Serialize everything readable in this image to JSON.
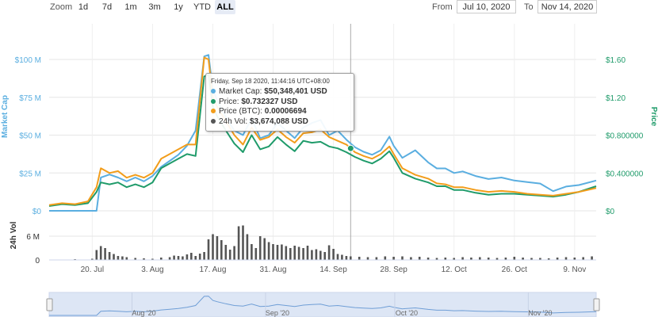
{
  "toolbar": {
    "zoom_label": "Zoom",
    "zoom_buttons": [
      "1d",
      "7d",
      "1m",
      "3m",
      "1y",
      "YTD",
      "ALL"
    ],
    "active_zoom": "ALL",
    "from_label": "From",
    "from_value": "Jul 10, 2020",
    "to_label": "To",
    "to_value": "Nov 14, 2020"
  },
  "tooltip": {
    "date": "Friday, Sep 18 2020, 11:44:16 UTC+08:00",
    "rows": [
      {
        "label": "Market Cap:",
        "value": "$50,348,401 USD",
        "color": "#5aaee0"
      },
      {
        "label": "Price:",
        "value": "$0.732327 USD",
        "color": "#1f9b6a"
      },
      {
        "label": "Price (BTC):",
        "value": "0.00006694",
        "color": "#f29d1b"
      },
      {
        "label": "24h Vol:",
        "value": "$3,674,088 USD",
        "color": "#555555"
      }
    ]
  },
  "colors": {
    "market_cap": "#5aaee0",
    "price": "#1f9b6a",
    "price_btc": "#f29d1b",
    "volume": "#555555",
    "navigator_fill": "#dde6f5",
    "navigator_line": "#6f9ed6"
  },
  "chart_data": {
    "type": "line",
    "left_axis": {
      "label": "Market Cap",
      "ticks": [
        "$0",
        "$25 M",
        "$50 M",
        "$75 M",
        "$100 M"
      ],
      "range": [
        0,
        100000000
      ],
      "color": "#5aaee0"
    },
    "right_axis": {
      "label": "Price",
      "ticks": [
        "$0",
        "$0.400000",
        "$0.800000",
        "$1.20",
        "$1.60"
      ],
      "range": [
        0,
        1.6
      ],
      "color": "#1f9b6a"
    },
    "volume_axis": {
      "label": "24h Vol",
      "ticks": [
        "0",
        "6 M"
      ],
      "range": [
        0,
        12000000
      ]
    },
    "x_tick_labels": [
      "20. Jul",
      "3. Aug",
      "17. Aug",
      "31. Aug",
      "14. Sep",
      "28. Sep",
      "12. Oct",
      "26. Oct",
      "9. Nov"
    ],
    "x_tick_days": [
      10,
      24,
      38,
      52,
      66,
      80,
      94,
      108,
      122
    ],
    "x_range_days": [
      0,
      127
    ],
    "x_day0": "Jul 10, 2020",
    "navigator_labels": [
      "Aug '20",
      "Sep '20",
      "Oct '20",
      "Nov '20"
    ],
    "navigator_label_days": [
      22,
      53,
      83,
      114
    ],
    "grid": true,
    "series": [
      {
        "name": "Market Cap",
        "axis": "left",
        "days": [
          0,
          3,
          6,
          9,
          11,
          12,
          14,
          16,
          18,
          20,
          22,
          24,
          26,
          28,
          30,
          32,
          34,
          36,
          37,
          38,
          39,
          41,
          43,
          45,
          47,
          49,
          51,
          53,
          55,
          57,
          59,
          61,
          63,
          65,
          67,
          69,
          71,
          73,
          75,
          77,
          79,
          80,
          82,
          85,
          88,
          90,
          92,
          94,
          96,
          99,
          102,
          105,
          108,
          111,
          114,
          117,
          120,
          123,
          127
        ],
        "values": [
          0,
          0,
          0,
          0,
          0,
          22000000,
          24000000,
          22000000,
          19500000,
          22000000,
          19500000,
          23000000,
          29000000,
          33000000,
          37000000,
          43000000,
          53000000,
          102000000,
          103000000,
          80000000,
          73000000,
          62000000,
          53000000,
          50000000,
          61000000,
          48000000,
          50000000,
          58000000,
          53000000,
          48000000,
          55000000,
          58000000,
          60000000,
          50000000,
          53000000,
          47000000,
          42000000,
          39000000,
          37000000,
          40000000,
          49000000,
          43000000,
          35000000,
          40000000,
          32000000,
          28000000,
          28000000,
          25000000,
          26000000,
          23000000,
          21000000,
          22000000,
          20000000,
          19000000,
          18000000,
          13000000,
          16000000,
          17000000,
          20000000
        ]
      },
      {
        "name": "Price",
        "axis": "right",
        "days": [
          0,
          3,
          6,
          9,
          11,
          12,
          14,
          16,
          18,
          20,
          22,
          24,
          26,
          28,
          30,
          32,
          34,
          36,
          37,
          38,
          39,
          41,
          43,
          45,
          47,
          49,
          51,
          53,
          55,
          57,
          59,
          61,
          63,
          65,
          67,
          69,
          71,
          73,
          75,
          77,
          79,
          80,
          82,
          85,
          88,
          90,
          92,
          94,
          96,
          99,
          102,
          105,
          108,
          111,
          114,
          117,
          120,
          123,
          127
        ],
        "values": [
          0.05,
          0.07,
          0.06,
          0.08,
          0.2,
          0.3,
          0.28,
          0.3,
          0.25,
          0.28,
          0.25,
          0.3,
          0.45,
          0.5,
          0.55,
          0.6,
          0.58,
          1.42,
          1.44,
          1.1,
          1.0,
          0.85,
          0.71,
          0.62,
          0.8,
          0.65,
          0.68,
          0.78,
          0.7,
          0.63,
          0.74,
          0.72,
          0.73,
          0.68,
          0.66,
          0.62,
          0.57,
          0.53,
          0.5,
          0.55,
          0.63,
          0.56,
          0.4,
          0.34,
          0.3,
          0.26,
          0.26,
          0.22,
          0.22,
          0.19,
          0.17,
          0.18,
          0.18,
          0.17,
          0.16,
          0.15,
          0.17,
          0.2,
          0.26
        ]
      },
      {
        "name": "Price (BTC)",
        "axis": "right",
        "days": [
          0,
          3,
          6,
          9,
          11,
          12,
          14,
          16,
          18,
          20,
          22,
          24,
          26,
          28,
          30,
          32,
          34,
          36,
          37,
          38,
          39,
          41,
          43,
          45,
          47,
          49,
          51,
          53,
          55,
          57,
          59,
          61,
          63,
          65,
          67,
          69,
          71,
          73,
          75,
          77,
          79,
          80,
          82,
          85,
          88,
          90,
          92,
          94,
          96,
          99,
          102,
          105,
          108,
          111,
          114,
          117,
          120,
          123,
          127
        ],
        "values": [
          0.06,
          0.08,
          0.07,
          0.1,
          0.25,
          0.45,
          0.4,
          0.42,
          0.35,
          0.38,
          0.35,
          0.4,
          0.55,
          0.6,
          0.65,
          0.7,
          0.7,
          1.62,
          1.6,
          1.2,
          1.1,
          0.95,
          0.8,
          0.7,
          0.88,
          0.75,
          0.78,
          0.86,
          0.78,
          0.72,
          0.82,
          0.83,
          0.86,
          0.78,
          0.74,
          0.7,
          0.62,
          0.58,
          0.55,
          0.6,
          0.68,
          0.6,
          0.45,
          0.38,
          0.34,
          0.29,
          0.28,
          0.25,
          0.25,
          0.22,
          0.2,
          0.21,
          0.2,
          0.18,
          0.17,
          0.16,
          0.18,
          0.2,
          0.24
        ]
      },
      {
        "name": "24h Vol",
        "axis": "volume",
        "days": [
          0,
          2,
          4,
          6,
          8,
          10,
          11,
          12,
          13,
          14,
          15,
          16,
          17,
          18,
          20,
          22,
          24,
          26,
          28,
          29,
          30,
          31,
          32,
          33,
          34,
          35,
          36,
          37,
          38,
          39,
          40,
          41,
          42,
          43,
          44,
          45,
          46,
          47,
          48,
          49,
          50,
          51,
          52,
          53,
          54,
          55,
          56,
          57,
          58,
          59,
          60,
          61,
          62,
          63,
          64,
          65,
          66,
          67,
          68,
          69,
          70,
          72,
          74,
          76,
          78,
          80,
          82,
          84,
          86,
          88,
          90,
          92,
          94,
          96,
          98,
          100,
          102,
          104,
          106,
          108,
          110,
          112,
          114,
          116,
          118,
          120,
          122,
          124,
          126
        ],
        "values": [
          0,
          0,
          0,
          200000,
          0,
          300000,
          2500000,
          3500000,
          3000000,
          2000000,
          1500000,
          1000000,
          900000,
          700000,
          500000,
          400000,
          300000,
          600000,
          700000,
          1100000,
          1000000,
          900000,
          1400000,
          1800000,
          1000000,
          1600000,
          2000000,
          5200000,
          6500000,
          6000000,
          5000000,
          3800000,
          2600000,
          3500000,
          8500000,
          8700000,
          6500000,
          4000000,
          3000000,
          6000000,
          5500000,
          4500000,
          4000000,
          3800000,
          3900000,
          3500000,
          3000000,
          3600000,
          3300000,
          3000000,
          3600000,
          2500000,
          2700000,
          2300000,
          2000000,
          3700000,
          2800000,
          1500000,
          1300000,
          1000000,
          900000,
          800000,
          700000,
          700000,
          900000,
          800000,
          900000,
          700000,
          800000,
          600000,
          500000,
          600000,
          500000,
          700000,
          600000,
          700000,
          600000,
          500000,
          600000,
          800000,
          600000,
          500000,
          500000,
          400000,
          600000,
          700000,
          600000,
          700000,
          900000
        ]
      }
    ]
  }
}
